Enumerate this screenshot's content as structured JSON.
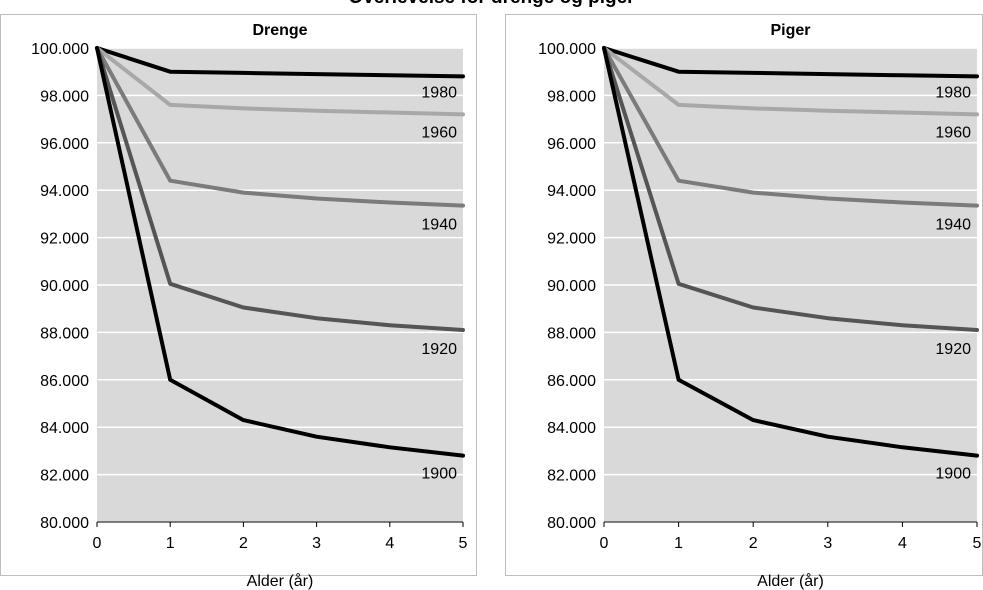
{
  "figure": {
    "title": "Overlevelse for drenge og piger"
  },
  "chart_data": [
    {
      "type": "line",
      "title": "Drenge",
      "xlabel": "Alder (år)",
      "ylabel": "",
      "x": [
        0,
        1,
        2,
        3,
        4,
        5
      ],
      "xlim": [
        0,
        5
      ],
      "ylim": [
        80000,
        100000
      ],
      "ytick_labels": [
        "80.000",
        "82.000",
        "84.000",
        "86.000",
        "88.000",
        "90.000",
        "92.000",
        "94.000",
        "96.000",
        "98.000",
        "100.000"
      ],
      "xtick_labels": [
        "0",
        "1",
        "2",
        "3",
        "4",
        "5"
      ],
      "grid": true,
      "legend": "none",
      "series": [
        {
          "name": "1980",
          "values": [
            100000,
            99000,
            98950,
            98900,
            98850,
            98800
          ],
          "color": "#000000"
        },
        {
          "name": "1960",
          "values": [
            100000,
            97600,
            97450,
            97350,
            97280,
            97200
          ],
          "color": "#a8a8a8"
        },
        {
          "name": "1940",
          "values": [
            100000,
            94400,
            93900,
            93650,
            93480,
            93350
          ],
          "color": "#7b7b7b"
        },
        {
          "name": "1920",
          "values": [
            100000,
            90050,
            89050,
            88600,
            88300,
            88100
          ],
          "color": "#555555"
        },
        {
          "name": "1900",
          "values": [
            100000,
            86000,
            84300,
            83600,
            83150,
            82800
          ],
          "color": "#000000"
        }
      ]
    },
    {
      "type": "line",
      "title": "Piger",
      "xlabel": "Alder (år)",
      "ylabel": "",
      "x": [
        0,
        1,
        2,
        3,
        4,
        5
      ],
      "xlim": [
        0,
        5
      ],
      "ylim": [
        80000,
        100000
      ],
      "ytick_labels": [
        "80.000",
        "82.000",
        "84.000",
        "86.000",
        "88.000",
        "90.000",
        "92.000",
        "94.000",
        "96.000",
        "98.000",
        "100.000"
      ],
      "xtick_labels": [
        "0",
        "1",
        "2",
        "3",
        "4",
        "5"
      ],
      "grid": true,
      "legend": "none",
      "series": [
        {
          "name": "1980",
          "values": [
            100000,
            99000,
            98950,
            98900,
            98850,
            98800
          ],
          "color": "#000000"
        },
        {
          "name": "1960",
          "values": [
            100000,
            97600,
            97450,
            97350,
            97280,
            97200
          ],
          "color": "#a8a8a8"
        },
        {
          "name": "1940",
          "values": [
            100000,
            94400,
            93900,
            93650,
            93480,
            93350
          ],
          "color": "#7b7b7b"
        },
        {
          "name": "1920",
          "values": [
            100000,
            90050,
            89050,
            88600,
            88300,
            88100
          ],
          "color": "#555555"
        },
        {
          "name": "1900",
          "values": [
            100000,
            86000,
            84300,
            83600,
            83150,
            82800
          ],
          "color": "#000000"
        }
      ]
    }
  ]
}
